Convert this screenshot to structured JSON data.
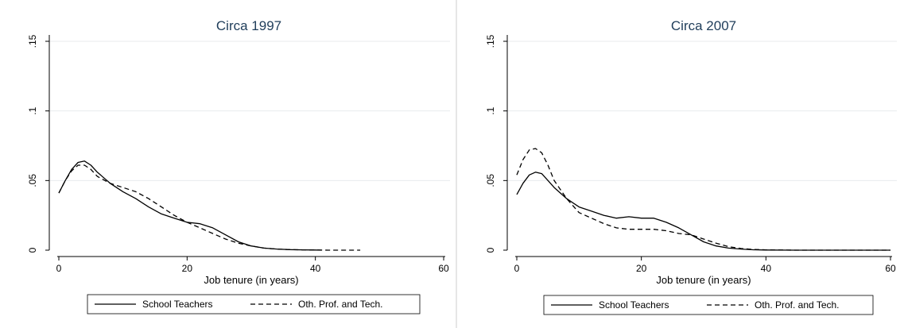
{
  "chart_data": [
    {
      "type": "line",
      "title": "Circa 1997",
      "xlabel": "Job tenure (in years)",
      "ylabel": "",
      "xlim": [
        0,
        60
      ],
      "ylim": [
        0,
        0.15
      ],
      "xticks": [
        0,
        20,
        40,
        60
      ],
      "xtick_labels": [
        "0",
        "20",
        "40",
        "60"
      ],
      "yticks": [
        0,
        0.05,
        0.1,
        0.15
      ],
      "ytick_labels": [
        "0",
        ".05",
        ".1",
        ".15"
      ],
      "grid": "horizontal",
      "legend_position": "bottom",
      "series": [
        {
          "name": "School Teachers",
          "style": "solid",
          "x": [
            0,
            1,
            2,
            3,
            4,
            5,
            6,
            8,
            10,
            12,
            14,
            16,
            18,
            20,
            22,
            24,
            26,
            28,
            30,
            32,
            34,
            36,
            38,
            40,
            41
          ],
          "y": [
            0.041,
            0.05,
            0.058,
            0.063,
            0.064,
            0.061,
            0.056,
            0.048,
            0.042,
            0.037,
            0.031,
            0.026,
            0.023,
            0.02,
            0.019,
            0.016,
            0.011,
            0.006,
            0.003,
            0.0015,
            0.0008,
            0.0004,
            0.0002,
            0.0001,
            0.0
          ]
        },
        {
          "name": "Oth. Prof. and Tech.",
          "style": "dashed",
          "x": [
            0,
            1,
            2,
            3,
            4,
            5,
            6,
            8,
            10,
            12,
            14,
            16,
            18,
            20,
            22,
            24,
            26,
            28,
            30,
            32,
            34,
            36,
            38,
            40,
            42,
            44,
            47
          ],
          "y": [
            0.041,
            0.05,
            0.057,
            0.061,
            0.061,
            0.058,
            0.053,
            0.048,
            0.045,
            0.042,
            0.037,
            0.031,
            0.025,
            0.02,
            0.016,
            0.012,
            0.008,
            0.005,
            0.003,
            0.0015,
            0.0008,
            0.0004,
            0.0002,
            0.0001,
            0.0,
            0.0,
            0.0
          ]
        }
      ]
    },
    {
      "type": "line",
      "title": "Circa 2007",
      "xlabel": "Job tenure (in years)",
      "ylabel": "",
      "xlim": [
        0,
        60
      ],
      "ylim": [
        0,
        0.15
      ],
      "xticks": [
        0,
        20,
        40,
        60
      ],
      "xtick_labels": [
        "0",
        "20",
        "40",
        "60"
      ],
      "yticks": [
        0,
        0.05,
        0.1,
        0.15
      ],
      "ytick_labels": [
        "0",
        ".05",
        ".1",
        ".15"
      ],
      "grid": "horizontal",
      "legend_position": "bottom",
      "series": [
        {
          "name": "School Teachers",
          "style": "solid",
          "x": [
            0,
            1,
            2,
            3,
            4,
            5,
            6,
            8,
            10,
            12,
            14,
            16,
            18,
            20,
            22,
            24,
            26,
            28,
            30,
            32,
            34,
            36,
            38,
            40,
            45,
            50,
            55,
            60
          ],
          "y": [
            0.04,
            0.048,
            0.054,
            0.056,
            0.055,
            0.05,
            0.045,
            0.037,
            0.031,
            0.028,
            0.025,
            0.023,
            0.024,
            0.023,
            0.023,
            0.02,
            0.016,
            0.011,
            0.006,
            0.003,
            0.0015,
            0.0008,
            0.0003,
            0.0001,
            0.0,
            0.0,
            0.0,
            0.0
          ]
        },
        {
          "name": "Oth. Prof. and Tech.",
          "style": "dashed",
          "x": [
            0,
            1,
            2,
            3,
            4,
            5,
            6,
            8,
            10,
            12,
            14,
            16,
            18,
            20,
            22,
            24,
            26,
            28,
            30,
            32,
            34,
            36,
            38,
            40,
            45,
            50,
            55,
            60
          ],
          "y": [
            0.054,
            0.065,
            0.072,
            0.073,
            0.07,
            0.061,
            0.05,
            0.037,
            0.027,
            0.023,
            0.019,
            0.016,
            0.015,
            0.015,
            0.015,
            0.014,
            0.012,
            0.011,
            0.008,
            0.005,
            0.0025,
            0.0012,
            0.0005,
            0.0002,
            0.0,
            0.0,
            0.0,
            0.0
          ]
        }
      ]
    }
  ]
}
